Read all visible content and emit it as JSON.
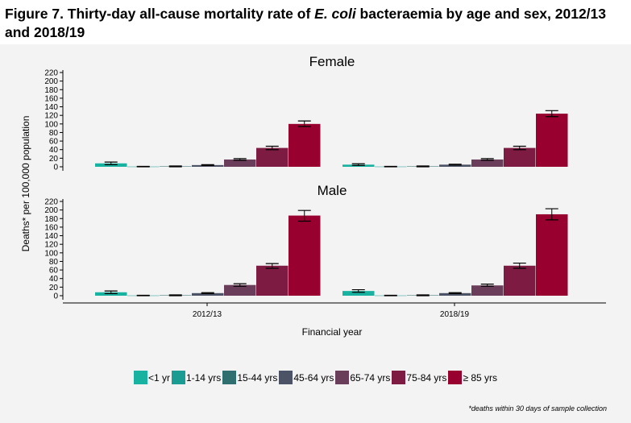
{
  "title_prefix": "Figure 7. Thirty-day all-cause mortality rate of ",
  "title_italic": "E. coli",
  "title_suffix": " bacteraemia by age and sex, 2012/13 and 2018/19",
  "xlabel": "Financial year",
  "ylabel": "Deaths* per 100,000 population",
  "footnote": "*deaths within 30 days of sample collection",
  "chart_data": {
    "type": "bar",
    "categories": [
      "2012/13",
      "2018/19"
    ],
    "ylim": [
      0,
      220
    ],
    "yticks": [
      0,
      20,
      40,
      60,
      80,
      100,
      120,
      140,
      160,
      180,
      200,
      220
    ],
    "legend_position": "bottom",
    "grid": false,
    "series": [
      {
        "name": "<1 yr",
        "color": "#17b3a0"
      },
      {
        "name": "1-14 yrs",
        "color": "#1a9c93"
      },
      {
        "name": "15-44 yrs",
        "color": "#2f6f70"
      },
      {
        "name": "45-64 yrs",
        "color": "#4c5366"
      },
      {
        "name": "65-74 yrs",
        "color": "#6a3d5a"
      },
      {
        "name": "75-84 yrs",
        "color": "#7e1b42"
      },
      {
        "name": "≥ 85 yrs",
        "color": "#980030"
      }
    ],
    "panels": [
      {
        "name": "Female",
        "values": [
          [
            8,
            0.5,
            1,
            4,
            17,
            44,
            100
          ],
          [
            5,
            0.5,
            1,
            5,
            17,
            44,
            124
          ]
        ],
        "err_low": [
          [
            5,
            0,
            0,
            3,
            15,
            40,
            94
          ],
          [
            3,
            0,
            0,
            4,
            15,
            40,
            117
          ]
        ],
        "err_high": [
          [
            11,
            1,
            2,
            5,
            19,
            48,
            107
          ],
          [
            7,
            1,
            2,
            6,
            19,
            48,
            131
          ]
        ]
      },
      {
        "name": "Male",
        "values": [
          [
            8,
            0.5,
            1,
            6,
            25,
            70,
            187
          ],
          [
            11,
            0.5,
            1,
            6,
            24,
            70,
            190
          ]
        ],
        "err_low": [
          [
            5,
            0,
            0,
            5,
            22,
            64,
            174
          ],
          [
            8,
            0,
            0,
            5,
            22,
            64,
            177
          ]
        ],
        "err_high": [
          [
            11,
            1,
            2,
            7,
            28,
            75,
            199
          ],
          [
            14,
            1,
            2,
            7,
            27,
            76,
            203
          ]
        ]
      }
    ]
  }
}
